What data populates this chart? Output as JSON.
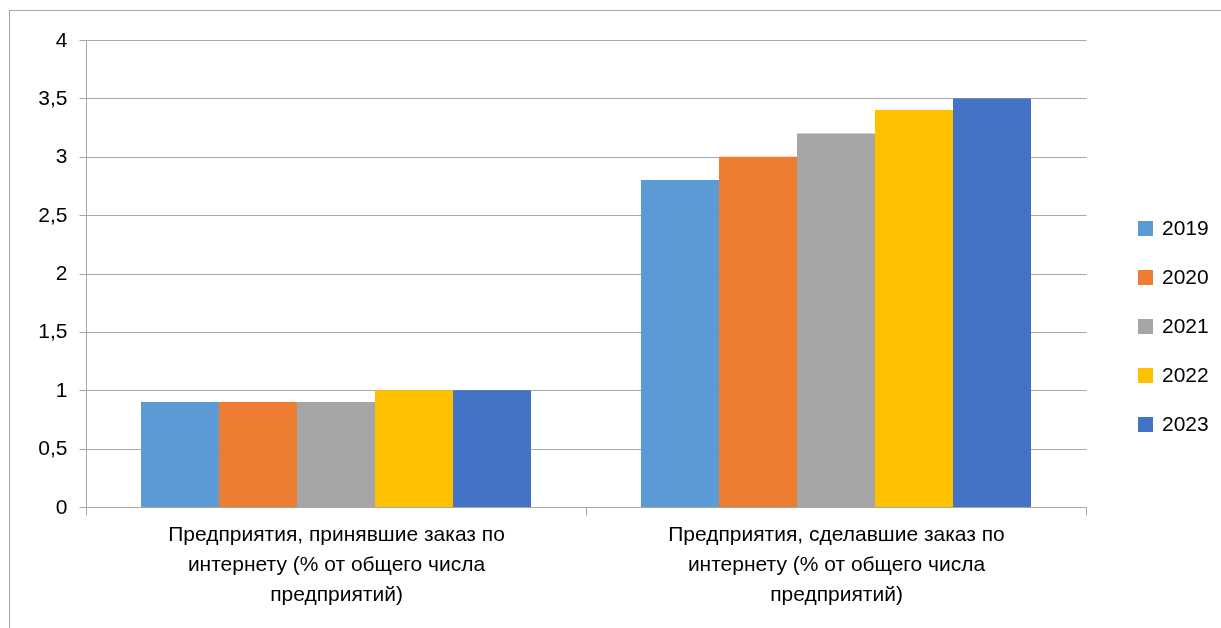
{
  "chart_data": {
    "type": "bar",
    "categories": [
      "Предприятия, принявшие заказ по интернету (% от общего числа предприятий)",
      "Предприятия, сделавшие заказ по интернету (% от общего числа предприятий)"
    ],
    "series": [
      {
        "name": "2019",
        "color": "#5b9bd5",
        "values": [
          0.9,
          2.8
        ]
      },
      {
        "name": "2020",
        "color": "#ed7d31",
        "values": [
          0.9,
          3.0
        ]
      },
      {
        "name": "2021",
        "color": "#a5a5a5",
        "values": [
          0.9,
          3.2
        ]
      },
      {
        "name": "2022",
        "color": "#ffc000",
        "values": [
          1.0,
          3.4
        ]
      },
      {
        "name": "2023",
        "color": "#4472c4",
        "values": [
          1.0,
          3.5
        ]
      }
    ],
    "ylim": [
      0,
      4
    ],
    "yticks": [
      0,
      {
        "value": 0.5,
        "label": "0,5"
      },
      1,
      {
        "value": 1.5,
        "label": "1,5"
      },
      2,
      {
        "value": 2.5,
        "label": "2,5"
      },
      3,
      {
        "value": 3.5,
        "label": "3,5"
      },
      4
    ],
    "grid": "y",
    "legend": "right"
  }
}
